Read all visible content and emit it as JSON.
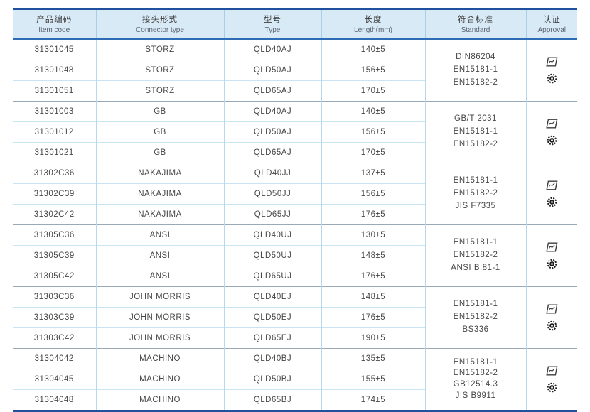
{
  "table": {
    "columns": [
      {
        "zh": "产品编码",
        "en": "Item code"
      },
      {
        "zh": "接头形式",
        "en": "Connector type"
      },
      {
        "zh": "型号",
        "en": "Type"
      },
      {
        "zh": "长度",
        "en": "Length(mm)"
      },
      {
        "zh": "符合标准",
        "en": "Standard"
      },
      {
        "zh": "认证",
        "en": "Approval"
      }
    ],
    "groups": [
      {
        "connector": "STORZ",
        "rows": [
          {
            "item_code": "31301045",
            "type": "QLD40AJ",
            "length": "140±5"
          },
          {
            "item_code": "31301048",
            "type": "QLD50AJ",
            "length": "156±5"
          },
          {
            "item_code": "31301051",
            "type": "QLD65AJ",
            "length": "170±5"
          }
        ],
        "standards": [
          "DIN86204",
          "EN15181-1",
          "EN15182-2"
        ],
        "approval_icons": [
          "class-mark-icon",
          "wheelmark-icon"
        ]
      },
      {
        "connector": "GB",
        "rows": [
          {
            "item_code": "31301003",
            "type": "QLD40AJ",
            "length": "140±5"
          },
          {
            "item_code": "31301012",
            "type": "QLD50AJ",
            "length": "156±5"
          },
          {
            "item_code": "31301021",
            "type": "QLD65AJ",
            "length": "170±5"
          }
        ],
        "standards": [
          "GB/T 2031",
          "EN15181-1",
          "EN15182-2"
        ],
        "approval_icons": [
          "class-mark-icon",
          "wheelmark-icon"
        ]
      },
      {
        "connector": "NAKAJIMA",
        "rows": [
          {
            "item_code": "31302C36",
            "type": "QLD40JJ",
            "length": "137±5"
          },
          {
            "item_code": "31302C39",
            "type": "QLD50JJ",
            "length": "156±5"
          },
          {
            "item_code": "31302C42",
            "type": "QLD65JJ",
            "length": "176±5"
          }
        ],
        "standards": [
          "EN15181-1",
          "EN15182-2",
          "JIS F7335"
        ],
        "approval_icons": [
          "class-mark-icon",
          "wheelmark-icon"
        ]
      },
      {
        "connector": "ANSI",
        "rows": [
          {
            "item_code": "31305C36",
            "type": "QLD40UJ",
            "length": "130±5"
          },
          {
            "item_code": "31305C39",
            "type": "QLD50UJ",
            "length": "148±5"
          },
          {
            "item_code": "31305C42",
            "type": "QLD65UJ",
            "length": "176±5"
          }
        ],
        "standards": [
          "EN15181-1",
          "EN15182-2",
          "ANSI B:81-1"
        ],
        "approval_icons": [
          "class-mark-icon",
          "wheelmark-icon"
        ]
      },
      {
        "connector": "JOHN MORRIS",
        "rows": [
          {
            "item_code": "31303C36",
            "type": "QLD40EJ",
            "length": "148±5"
          },
          {
            "item_code": "31303C39",
            "type": "QLD50EJ",
            "length": "176±5"
          },
          {
            "item_code": "31303C42",
            "type": "QLD65EJ",
            "length": "190±5"
          }
        ],
        "standards": [
          "EN15181-1",
          "EN15182-2",
          "BS336"
        ],
        "approval_icons": [
          "class-mark-icon",
          "wheelmark-icon"
        ]
      },
      {
        "connector": "MACHINO",
        "rows": [
          {
            "item_code": "31304042",
            "type": "QLD40BJ",
            "length": "135±5"
          },
          {
            "item_code": "31304045",
            "type": "QLD50BJ",
            "length": "155±5"
          },
          {
            "item_code": "31304048",
            "type": "QLD65BJ",
            "length": "174±5"
          }
        ],
        "standards": [
          "EN15181-1",
          "EN15182-2",
          "GB12514.3",
          "JIS B9911"
        ],
        "approval_icons": [
          "class-mark-icon",
          "wheelmark-icon"
        ]
      }
    ],
    "colors": {
      "header_bg": "#d9eaf7",
      "outer_border": "#20509e",
      "header_rule": "#2e6db6",
      "row_line": "#c9e4f3",
      "group_line": "#97aab6",
      "column_line": "#b5d8ec",
      "text": "#474747"
    }
  }
}
